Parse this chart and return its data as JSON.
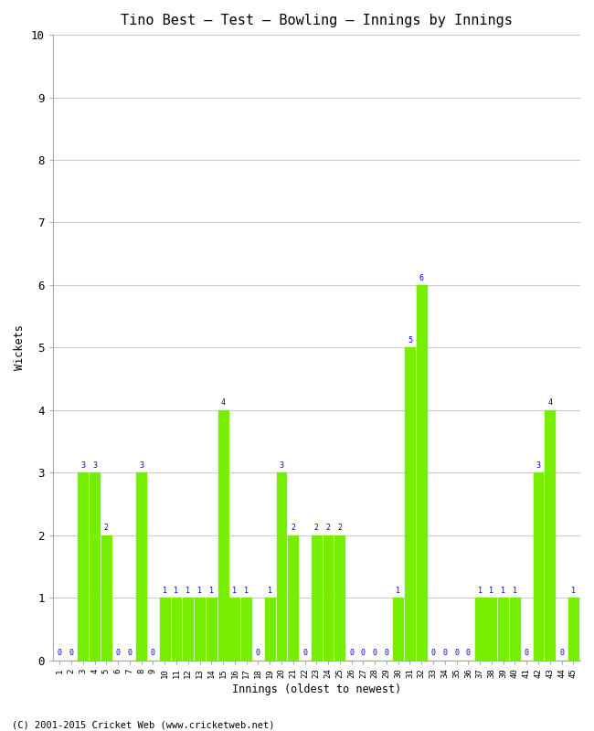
{
  "title": "Tino Best – Test – Bowling – Innings by Innings",
  "xlabel": "Innings (oldest to newest)",
  "ylabel": "Wickets",
  "ylim": [
    0,
    10
  ],
  "yticks": [
    0,
    1,
    2,
    3,
    4,
    5,
    6,
    7,
    8,
    9,
    10
  ],
  "bar_color": "#77ee00",
  "label_color": "#0000cc",
  "background_color": "#ffffff",
  "grid_color": "#cccccc",
  "footer": "(C) 2001-2015 Cricket Web (www.cricketweb.net)",
  "innings": [
    1,
    2,
    3,
    4,
    5,
    6,
    7,
    8,
    9,
    10,
    11,
    12,
    13,
    14,
    15,
    16,
    17,
    18,
    19,
    20,
    21,
    22,
    23,
    24,
    25,
    26,
    27,
    28,
    29,
    30,
    31,
    32,
    33,
    34,
    35,
    36,
    37,
    38,
    39,
    40,
    41,
    42,
    43,
    44,
    45
  ],
  "wickets": [
    0,
    0,
    3,
    3,
    2,
    0,
    0,
    3,
    0,
    1,
    1,
    1,
    1,
    1,
    4,
    1,
    1,
    0,
    1,
    3,
    2,
    0,
    2,
    2,
    2,
    0,
    0,
    0,
    0,
    1,
    5,
    6,
    0,
    0,
    0,
    0,
    1,
    1,
    1,
    1,
    0,
    3,
    4,
    0,
    1
  ]
}
